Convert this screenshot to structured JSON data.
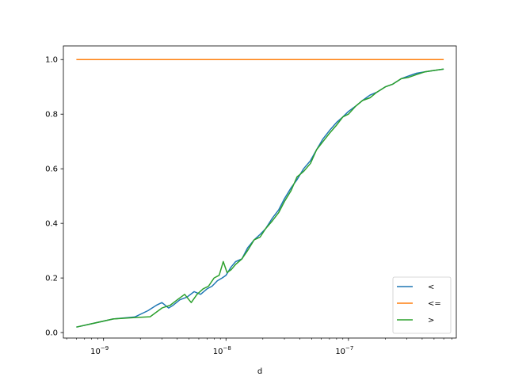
{
  "chart_data": {
    "type": "line",
    "title": "",
    "xlabel": "d",
    "ylabel": "",
    "xscale": "log",
    "xlim": [
      4.7e-10,
      7.6e-07
    ],
    "ylim": [
      -0.02,
      1.05
    ],
    "grid": false,
    "legend_position": "lower right",
    "x_ticks": [
      {
        "value": 1e-09,
        "label": "10",
        "exp": "−9"
      },
      {
        "value": 1e-08,
        "label": "10",
        "exp": "−8"
      },
      {
        "value": 1e-07,
        "label": "10",
        "exp": "−7"
      }
    ],
    "y_ticks": [
      {
        "value": 0.0,
        "label": "0.0"
      },
      {
        "value": 0.2,
        "label": "0.2"
      },
      {
        "value": 0.4,
        "label": "0.4"
      },
      {
        "value": 0.6,
        "label": "0.6"
      },
      {
        "value": 0.8,
        "label": "0.8"
      },
      {
        "value": 1.0,
        "label": "1.0"
      }
    ],
    "series": [
      {
        "name": "<",
        "color": "#1f77b4",
        "x": [
          6e-10,
          1.2e-09,
          1.8e-09,
          2.3e-09,
          2.7e-09,
          3e-09,
          3.4e-09,
          3.7e-09,
          4.2e-09,
          4.8e-09,
          5.5e-09,
          6.2e-09,
          7e-09,
          7.7e-09,
          8.5e-09,
          9.3e-09,
          1e-08,
          1.1e-08,
          1.2e-08,
          1.35e-08,
          1.5e-08,
          1.7e-08,
          1.9e-08,
          2.1e-08,
          2.4e-08,
          2.7e-08,
          3e-08,
          3.4e-08,
          3.8e-08,
          4.3e-08,
          4.9e-08,
          5.5e-08,
          6.2e-08,
          7e-08,
          8e-08,
          9e-08,
          1e-07,
          1.15e-07,
          1.3e-07,
          1.5e-07,
          1.7e-07,
          2e-07,
          2.3e-07,
          2.7e-07,
          3.1e-07,
          3.6e-07,
          4.2e-07,
          5e-07,
          6e-07
        ],
        "y": [
          0.02,
          0.05,
          0.057,
          0.08,
          0.1,
          0.11,
          0.09,
          0.1,
          0.12,
          0.13,
          0.15,
          0.14,
          0.16,
          0.17,
          0.19,
          0.2,
          0.21,
          0.24,
          0.26,
          0.27,
          0.31,
          0.34,
          0.36,
          0.38,
          0.42,
          0.45,
          0.49,
          0.53,
          0.56,
          0.6,
          0.63,
          0.67,
          0.71,
          0.74,
          0.77,
          0.79,
          0.81,
          0.83,
          0.85,
          0.87,
          0.88,
          0.9,
          0.91,
          0.93,
          0.94,
          0.95,
          0.955,
          0.96,
          0.965
        ]
      },
      {
        "name": "<=",
        "color": "#ff7f0e",
        "x": [
          6e-10,
          6e-07
        ],
        "y": [
          1.0,
          1.0
        ]
      },
      {
        "name": ">",
        "color": "#2ca02c",
        "x": [
          6e-10,
          1.2e-09,
          1.8e-09,
          2.4e-09,
          3e-09,
          3.5e-09,
          4e-09,
          4.6e-09,
          5.2e-09,
          5.8e-09,
          6.5e-09,
          7.2e-09,
          8e-09,
          8.8e-09,
          9.5e-09,
          1.02e-08,
          1.1e-08,
          1.2e-08,
          1.35e-08,
          1.5e-08,
          1.7e-08,
          1.9e-08,
          2.1e-08,
          2.4e-08,
          2.7e-08,
          3e-08,
          3.4e-08,
          3.8e-08,
          4.3e-08,
          4.9e-08,
          5.5e-08,
          6.2e-08,
          7e-08,
          8e-08,
          9e-08,
          1e-07,
          1.15e-07,
          1.3e-07,
          1.5e-07,
          1.7e-07,
          2e-07,
          2.3e-07,
          2.7e-07,
          3.1e-07,
          3.6e-07,
          4.2e-07,
          5e-07,
          6e-07
        ],
        "y": [
          0.02,
          0.05,
          0.055,
          0.058,
          0.09,
          0.1,
          0.12,
          0.14,
          0.11,
          0.14,
          0.16,
          0.17,
          0.2,
          0.21,
          0.26,
          0.22,
          0.23,
          0.25,
          0.27,
          0.3,
          0.34,
          0.35,
          0.38,
          0.41,
          0.44,
          0.48,
          0.52,
          0.57,
          0.59,
          0.62,
          0.67,
          0.7,
          0.73,
          0.76,
          0.79,
          0.8,
          0.83,
          0.85,
          0.86,
          0.88,
          0.9,
          0.91,
          0.93,
          0.935,
          0.945,
          0.955,
          0.96,
          0.965
        ]
      }
    ]
  }
}
